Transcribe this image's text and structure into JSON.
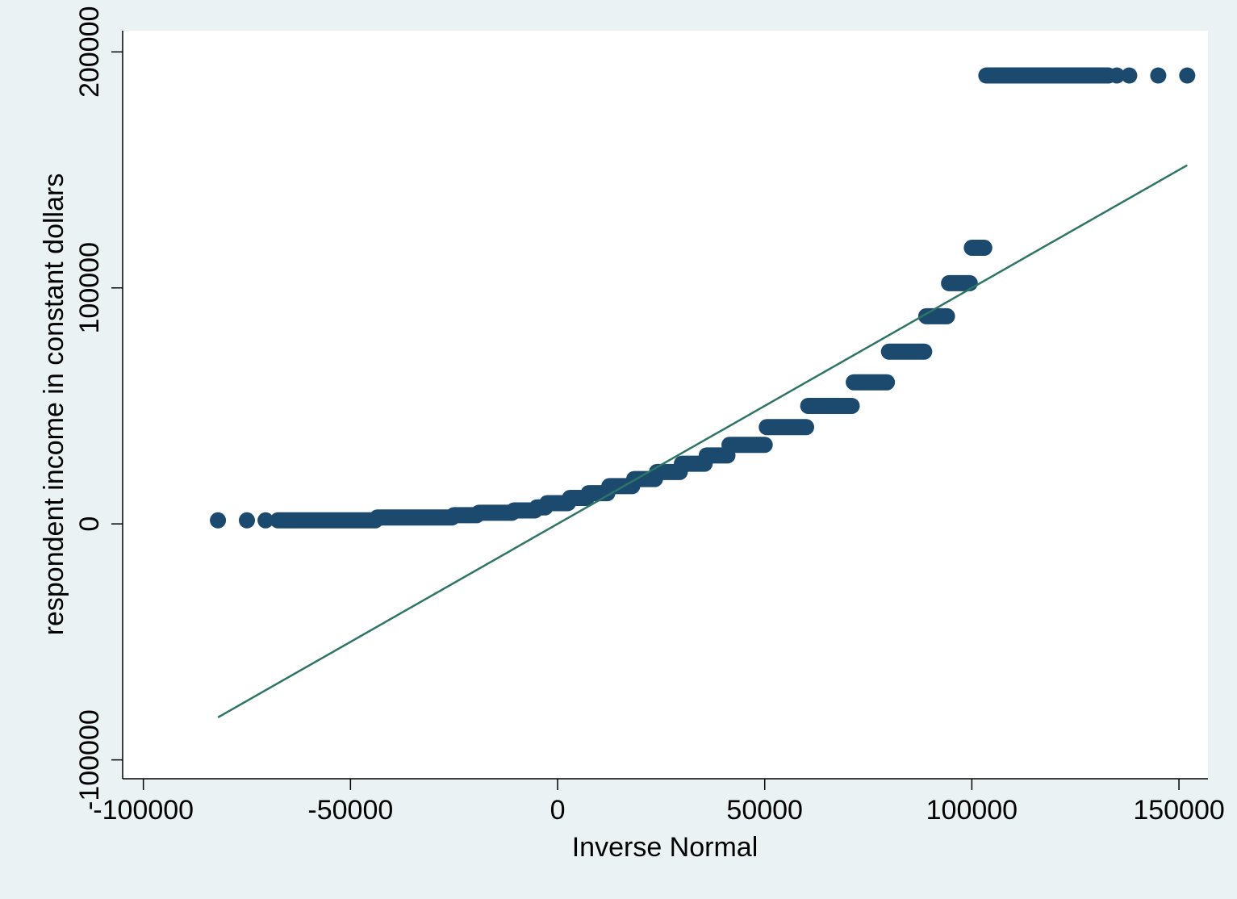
{
  "chart_data": {
    "type": "scatter",
    "title": "",
    "xlabel": "Inverse Normal",
    "ylabel": "respondent income in constant dollars",
    "xlim": [
      -105000,
      157000
    ],
    "ylim": [
      -108000,
      209000
    ],
    "x_ticks": [
      -100000,
      -50000,
      0,
      50000,
      100000,
      150000
    ],
    "x_tick_labels": [
      "-100000",
      "-50000",
      "0",
      "50000",
      "100000",
      "150000"
    ],
    "y_ticks": [
      -100000,
      0,
      100000,
      200000
    ],
    "y_tick_labels": [
      "-100000",
      "0",
      "100000",
      "200000"
    ],
    "grid": false,
    "legend": "none",
    "colors": {
      "background": "#eaf2f3",
      "plot_background": "#ffffff",
      "markers": "#1b4a6e",
      "reference_line": "#2e7566"
    },
    "reference_line": {
      "x": [
        -82000,
        152000
      ],
      "y": [
        -82000,
        152000
      ]
    },
    "series": [
      {
        "segments": [
          {
            "x": [
              -82000,
              -82000
            ],
            "y": 1500
          },
          {
            "x": [
              -75000,
              -75000
            ],
            "y": 1500
          },
          {
            "x": [
              -70500,
              -70500
            ],
            "y": 1500
          },
          {
            "x": [
              -67500,
              -44000
            ],
            "y": 1500
          },
          {
            "x": [
              -43500,
              -25500
            ],
            "y": 2700
          },
          {
            "x": [
              -25000,
              -19500
            ],
            "y": 3700
          },
          {
            "x": [
              -19000,
              -11000
            ],
            "y": 4700
          },
          {
            "x": [
              -10500,
              -5500
            ],
            "y": 5700
          },
          {
            "x": [
              -5000,
              -3000
            ],
            "y": 7000
          },
          {
            "x": [
              -2500,
              2500
            ],
            "y": 8800
          },
          {
            "x": [
              3000,
              7000
            ],
            "y": 11000
          },
          {
            "x": [
              7500,
              12000
            ],
            "y": 13000
          },
          {
            "x": [
              12500,
              18000
            ],
            "y": 16000
          },
          {
            "x": [
              18500,
              23500
            ],
            "y": 19000
          },
          {
            "x": [
              24000,
              29500
            ],
            "y": 22000
          },
          {
            "x": [
              30000,
              35500
            ],
            "y": 25500
          },
          {
            "x": [
              36000,
              41000
            ],
            "y": 29000
          },
          {
            "x": [
              41500,
              50000
            ],
            "y": 33500
          },
          {
            "x": [
              50500,
              60000
            ],
            "y": 41000
          },
          {
            "x": [
              60500,
              71000
            ],
            "y": 50000
          },
          {
            "x": [
              71500,
              79500
            ],
            "y": 60000
          },
          {
            "x": [
              80000,
              88500
            ],
            "y": 73000
          },
          {
            "x": [
              89000,
              94000
            ],
            "y": 88000
          },
          {
            "x": [
              94500,
              99500
            ],
            "y": 102000
          },
          {
            "x": [
              100000,
              103000
            ],
            "y": 117000
          },
          {
            "x": [
              103500,
              133000
            ],
            "y": 190000
          },
          {
            "x": [
              135000,
              135000
            ],
            "y": 190000
          },
          {
            "x": [
              138000,
              138000
            ],
            "y": 190000
          },
          {
            "x": [
              145000,
              145000
            ],
            "y": 190000
          },
          {
            "x": [
              152000,
              152000
            ],
            "y": 190000
          }
        ]
      }
    ]
  }
}
